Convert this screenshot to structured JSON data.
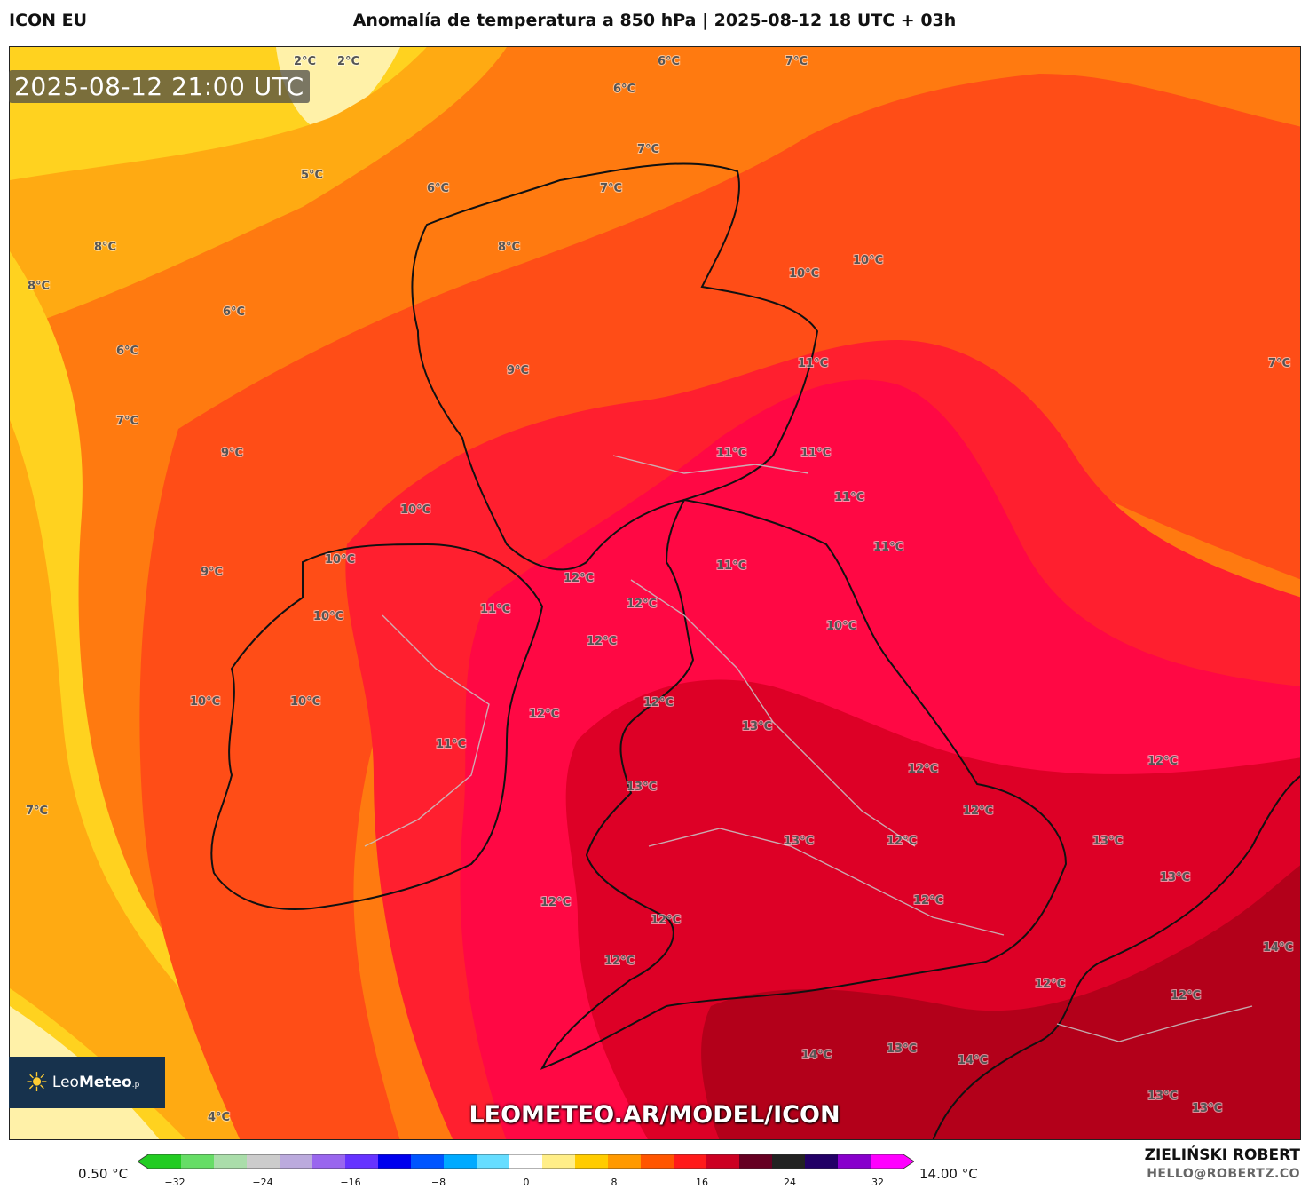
{
  "header": {
    "model": "ICON EU",
    "title": "Anomalía de temperatura a 850 hPa | 2025-08-12 18 UTC + 03h"
  },
  "timestamp": "2025-08-12 21:00 UTC",
  "watermark": "LEOMETEO.AR/MODEL/ICON",
  "logo": {
    "prefix": "Leo",
    "suffix": "Meteo",
    "tld": ".p"
  },
  "author": "ZIELIŃSKI ROBERT",
  "contact": "HELLO@ROBERTZ.CO",
  "colorbar": {
    "min_label": "0.50 °C",
    "max_label": "14.00 °C",
    "ticks": [
      "−32",
      "−24",
      "−16",
      "−8",
      "0",
      "8",
      "16",
      "24",
      "32"
    ],
    "colors": [
      "#22cc22",
      "#66dd66",
      "#aaddaa",
      "#cccccc",
      "#bbaadd",
      "#9966ee",
      "#6633ff",
      "#0000ee",
      "#0055ff",
      "#00aaff",
      "#66ddff",
      "#ffffff",
      "#ffee88",
      "#ffcc00",
      "#ff9900",
      "#ff5500",
      "#ff1a1a",
      "#cc0022",
      "#660022",
      "#222222",
      "#220066",
      "#8800cc",
      "#ff00ff"
    ]
  },
  "colors": {
    "light": "#fff1a8",
    "yellow": "#ffd21f",
    "orange_light": "#ffaa12",
    "orange": "#ff7a10",
    "red_orange": "#ff4d17",
    "red": "#ff1f2f",
    "crimson": "#ff0844",
    "dark_red": "#dd0026",
    "deep_red": "#b3001a"
  },
  "labels": [
    {
      "text": "2°C"
    },
    {
      "text": "2°C"
    },
    {
      "text": "6°C"
    },
    {
      "text": "7°C"
    },
    {
      "text": "6°C"
    },
    {
      "text": "7°C"
    },
    {
      "text": "5°C"
    },
    {
      "text": "6°C"
    },
    {
      "text": "7°C"
    },
    {
      "text": "8°C"
    },
    {
      "text": "8°C"
    },
    {
      "text": "8°C"
    },
    {
      "text": "10°C"
    },
    {
      "text": "10°C"
    },
    {
      "text": "6°C"
    },
    {
      "text": "6°C"
    },
    {
      "text": "9°C"
    },
    {
      "text": "11°C"
    },
    {
      "text": "7°C"
    },
    {
      "text": "7°C"
    },
    {
      "text": "9°C"
    },
    {
      "text": "11°C"
    },
    {
      "text": "11°C"
    },
    {
      "text": "11°C"
    },
    {
      "text": "10°C"
    },
    {
      "text": "11°C"
    },
    {
      "text": "10°C"
    },
    {
      "text": "11°C"
    },
    {
      "text": "9°C"
    },
    {
      "text": "12°C"
    },
    {
      "text": "10°C"
    },
    {
      "text": "11°C"
    },
    {
      "text": "12°C"
    },
    {
      "text": "12°C"
    },
    {
      "text": "10°C"
    },
    {
      "text": "10°C"
    },
    {
      "text": "10°C"
    },
    {
      "text": "12°C"
    },
    {
      "text": "12°C"
    },
    {
      "text": "13°C"
    },
    {
      "text": "11°C"
    },
    {
      "text": "12°C"
    },
    {
      "text": "13°C"
    },
    {
      "text": "12°C"
    },
    {
      "text": "7°C"
    },
    {
      "text": "12°C"
    },
    {
      "text": "13°C"
    },
    {
      "text": "12°C"
    },
    {
      "text": "13°C"
    },
    {
      "text": "13°C"
    },
    {
      "text": "12°C"
    },
    {
      "text": "12°C"
    },
    {
      "text": "12°C"
    },
    {
      "text": "12°C"
    },
    {
      "text": "14°C"
    },
    {
      "text": "12°C"
    },
    {
      "text": "12°C"
    },
    {
      "text": "14°C"
    },
    {
      "text": "13°C"
    },
    {
      "text": "14°C"
    },
    {
      "text": "4°C"
    },
    {
      "text": "13°C"
    },
    {
      "text": "13°C"
    }
  ]
}
